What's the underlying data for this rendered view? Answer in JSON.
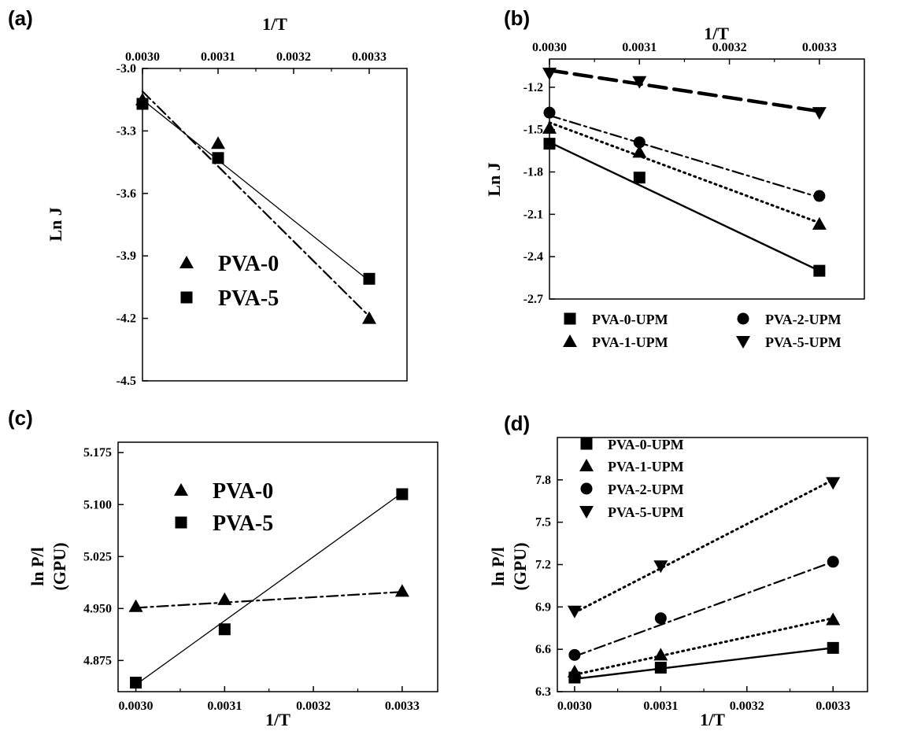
{
  "chart_data": [
    {
      "panel": "(a)",
      "type": "line",
      "title": "",
      "xlabel": "1/T",
      "xlabel_position": "top",
      "ylabel": "Ln J",
      "xlim": [
        0.003,
        0.00335
      ],
      "ylim": [
        -4.5,
        -3.0
      ],
      "xticks": [
        "0.0030",
        "0.0031",
        "0.0032",
        "0.0033"
      ],
      "yticks": [
        "-3.0",
        "-3.3",
        "-3.6",
        "-3.9",
        "-4.2",
        "-4.5"
      ],
      "legend_placement": "bottom-center",
      "series": [
        {
          "name": "PVA-0",
          "marker": "triangle-up",
          "line": "dash-dot",
          "x": [
            0.003,
            0.0031,
            0.0033
          ],
          "y": [
            -3.15,
            -3.36,
            -4.2
          ],
          "fit": [
            [
              0.003,
              -3.11
            ],
            [
              0.0033,
              -4.19
            ]
          ]
        },
        {
          "name": "PVA-5",
          "marker": "square",
          "line": "solid-thin",
          "x": [
            0.003,
            0.0031,
            0.0033
          ],
          "y": [
            -3.17,
            -3.43,
            -4.01
          ],
          "fit": [
            [
              0.003,
              -3.15
            ],
            [
              0.0033,
              -4.02
            ]
          ]
        }
      ]
    },
    {
      "panel": "(b)",
      "type": "line",
      "title": "",
      "xlabel": "1/T",
      "xlabel_position": "top",
      "ylabel": "Ln J",
      "xlim": [
        0.003,
        0.00335
      ],
      "ylim": [
        -2.7,
        -1.0
      ],
      "xticks": [
        "0.0030",
        "0.0031",
        "0.0032",
        "0.0033"
      ],
      "yticks": [
        "-1.2",
        "-1.5",
        "-1.8",
        "-2.1",
        "-2.4",
        "-2.7"
      ],
      "legend_placement": "bottom (two columns)",
      "series": [
        {
          "name": "PVA-0-UPM",
          "marker": "square",
          "line": "solid",
          "x": [
            0.003,
            0.0031,
            0.0033
          ],
          "y": [
            -1.6,
            -1.84,
            -2.5
          ],
          "fit": [
            [
              0.003,
              -1.59
            ],
            [
              0.0033,
              -2.5
            ]
          ]
        },
        {
          "name": "PVA-1-UPM",
          "marker": "triangle-up",
          "line": "dotted",
          "x": [
            0.003,
            0.0031,
            0.0033
          ],
          "y": [
            -1.49,
            -1.66,
            -2.17
          ],
          "fit": [
            [
              0.003,
              -1.45
            ],
            [
              0.0033,
              -2.16
            ]
          ]
        },
        {
          "name": "PVA-2-UPM",
          "marker": "circle",
          "line": "dash-dot",
          "x": [
            0.003,
            0.0031,
            0.0033
          ],
          "y": [
            -1.38,
            -1.59,
            -1.97
          ],
          "fit": [
            [
              0.003,
              -1.4
            ],
            [
              0.0033,
              -1.98
            ]
          ]
        },
        {
          "name": "PVA-5-UPM",
          "marker": "triangle-down",
          "line": "dashed-thick",
          "x": [
            0.003,
            0.0031,
            0.0033
          ],
          "y": [
            -1.1,
            -1.16,
            -1.38
          ],
          "fit": [
            [
              0.003,
              -1.08
            ],
            [
              0.0033,
              -1.37
            ]
          ]
        }
      ]
    },
    {
      "panel": "(c)",
      "type": "line",
      "title": "",
      "xlabel": "1/T",
      "xlabel_position": "bottom",
      "ylabel": "ln P/l",
      "ylabel2": "(GPU)",
      "xlim": [
        0.00298,
        0.00334
      ],
      "ylim": [
        4.83,
        5.19
      ],
      "xticks": [
        "0.0030",
        "0.0031",
        "0.0032",
        "0.0033"
      ],
      "yticks": [
        "4.875",
        "4.950",
        "5.025",
        "5.100",
        "5.175"
      ],
      "legend_placement": "top-left",
      "series": [
        {
          "name": "PVA-0",
          "marker": "triangle-up",
          "line": "dash-dot",
          "x": [
            0.003,
            0.0031,
            0.0033
          ],
          "y": [
            4.953,
            4.963,
            4.975
          ],
          "fit": [
            [
              0.003,
              4.951
            ],
            [
              0.0033,
              4.974
            ]
          ]
        },
        {
          "name": "PVA-5",
          "marker": "square",
          "line": "solid-thin",
          "x": [
            0.003,
            0.0031,
            0.0033
          ],
          "y": [
            4.843,
            4.92,
            5.115
          ],
          "fit": [
            [
              0.003,
              4.84
            ],
            [
              0.0033,
              5.117
            ]
          ]
        }
      ]
    },
    {
      "panel": "(d)",
      "type": "line",
      "title": "",
      "xlabel": "1/T",
      "xlabel_position": "bottom",
      "ylabel": "ln P/l",
      "ylabel2": "(GPU)",
      "xlim": [
        0.00298,
        0.00334
      ],
      "ylim": [
        6.3,
        8.1
      ],
      "xticks": [
        "0.0030",
        "0.0031",
        "0.0032",
        "0.0033"
      ],
      "yticks": [
        "6.3",
        "6.6",
        "6.9",
        "7.2",
        "7.5",
        "7.8"
      ],
      "legend_placement": "top-left",
      "series": [
        {
          "name": "PVA-0-UPM",
          "marker": "square",
          "line": "solid",
          "x": [
            0.003,
            0.0031,
            0.0033
          ],
          "y": [
            6.4,
            6.47,
            6.61
          ],
          "fit": [
            [
              0.003,
              6.39
            ],
            [
              0.0033,
              6.61
            ]
          ]
        },
        {
          "name": "PVA-1-UPM",
          "marker": "triangle-up",
          "line": "dotted",
          "x": [
            0.003,
            0.0031,
            0.0033
          ],
          "y": [
            6.44,
            6.56,
            6.81
          ],
          "fit": [
            [
              0.003,
              6.42
            ],
            [
              0.0033,
              6.82
            ]
          ]
        },
        {
          "name": "PVA-2-UPM",
          "marker": "circle",
          "line": "dash-dot",
          "x": [
            0.003,
            0.0031,
            0.0033
          ],
          "y": [
            6.56,
            6.82,
            7.22
          ],
          "fit": [
            [
              0.003,
              6.55
            ],
            [
              0.0033,
              7.22
            ]
          ]
        },
        {
          "name": "PVA-5-UPM",
          "marker": "triangle-down",
          "line": "dotted",
          "x": [
            0.003,
            0.0031,
            0.0033
          ],
          "y": [
            6.87,
            7.19,
            7.78
          ],
          "fit": [
            [
              0.003,
              6.86
            ],
            [
              0.0033,
              7.8
            ]
          ]
        }
      ]
    }
  ]
}
